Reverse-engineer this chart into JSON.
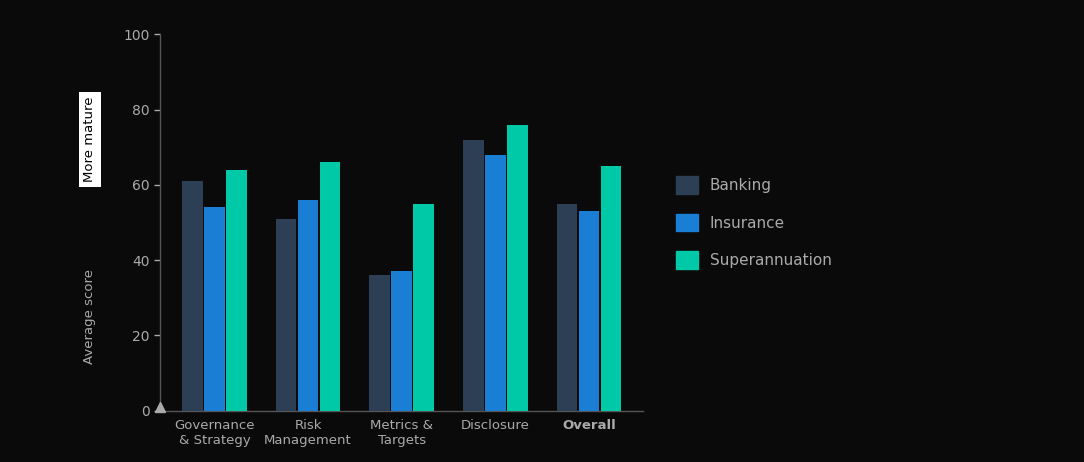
{
  "categories": [
    "Governance\n& Strategy",
    "Risk\nManagement",
    "Metrics &\nTargets",
    "Disclosure",
    "Overall"
  ],
  "banking": [
    61,
    51,
    36,
    72,
    55
  ],
  "insurance": [
    54,
    56,
    37,
    68,
    53
  ],
  "superannuation": [
    64,
    66,
    55,
    76,
    65
  ],
  "bar_colors": {
    "banking": "#2d3f54",
    "insurance": "#1a7fd4",
    "superannuation": "#00c9a7"
  },
  "legend_labels": [
    "Banking",
    "Insurance",
    "Superannuation"
  ],
  "ylabel": "Average score",
  "ylabel2": "More mature",
  "ylim": [
    0,
    100
  ],
  "yticks": [
    0,
    20,
    40,
    60,
    80,
    100
  ],
  "background_color": "#0a0a0a",
  "text_color": "#aaaaaa",
  "axis_color": "#555555"
}
